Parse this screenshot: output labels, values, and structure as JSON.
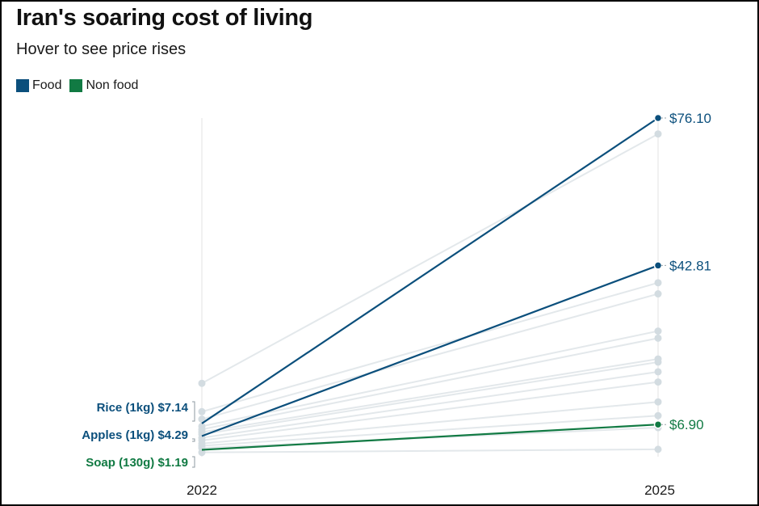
{
  "chart_data": {
    "type": "line",
    "title": "Iran's soaring cost of living",
    "subtitle": "Hover to see price rises",
    "x": [
      "2022",
      "2025"
    ],
    "legend": [
      {
        "name": "Food",
        "color": "#0b4f7c"
      },
      {
        "name": "Non food",
        "color": "#117a43"
      }
    ],
    "highlighted_series": [
      {
        "name": "Rice (1kg)",
        "category": "Food",
        "values": [
          7.14,
          76.1
        ],
        "start_label": "$7.14",
        "end_label": "$76.10"
      },
      {
        "name": "Apples (1kg)",
        "category": "Food",
        "values": [
          4.29,
          42.81
        ],
        "start_label": "$4.29",
        "end_label": "$42.81"
      },
      {
        "name": "Soap (130g)",
        "category": "Non food",
        "values": [
          1.19,
          6.9
        ],
        "start_label": "$1.19",
        "end_label": "$6.90"
      }
    ],
    "background_series": [
      {
        "values": [
          16.2,
          72.5
        ]
      },
      {
        "values": [
          9.8,
          38.9
        ]
      },
      {
        "values": [
          8.1,
          36.4
        ]
      },
      {
        "values": [
          6.5,
          28.0
        ]
      },
      {
        "values": [
          5.8,
          26.4
        ]
      },
      {
        "values": [
          5.2,
          21.7
        ]
      },
      {
        "values": [
          4.7,
          21.0
        ]
      },
      {
        "values": [
          3.9,
          18.8
        ]
      },
      {
        "values": [
          3.3,
          16.5
        ]
      },
      {
        "values": [
          2.6,
          12.0
        ]
      },
      {
        "values": [
          2.1,
          8.9
        ]
      },
      {
        "values": [
          1.6,
          6.2
        ]
      },
      {
        "values": [
          0.6,
          1.3
        ]
      }
    ],
    "ylim": [
      0,
      76.1
    ]
  },
  "colors": {
    "food": "#0b4f7c",
    "non_food": "#117a43",
    "background_line": "#e3e8eb",
    "background_dot": "#d3dce1",
    "axis": "#e3e3e3"
  }
}
